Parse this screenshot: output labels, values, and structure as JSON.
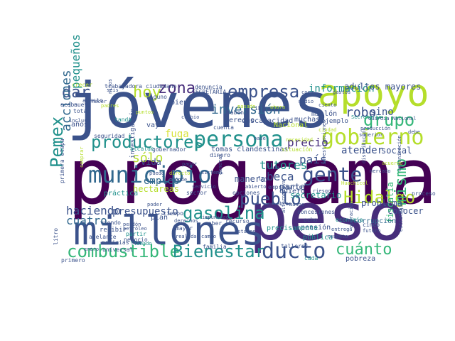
{
  "palette": {
    "dark_purple": "#440154",
    "indigo": "#3b528b",
    "teal": "#21918c",
    "green": "#5ec962",
    "lime": "#b5de2b",
    "purple": "#472d7b",
    "blue": "#31688e",
    "sea": "#35b779",
    "yellow": "#d9e33a"
  },
  "words": [
    {
      "text": "programa",
      "color": "#440154"
    },
    {
      "text": "jóvenes",
      "color": "#3b528b"
    },
    {
      "text": "peso",
      "color": "#472d7b"
    },
    {
      "text": "millones",
      "color": "#3b528b"
    },
    {
      "text": "apoyo",
      "color": "#b5de2b"
    },
    {
      "text": "municipio",
      "color": "#31688e"
    },
    {
      "text": "productores",
      "color": "#21918c"
    },
    {
      "text": "persona",
      "color": "#21918c"
    },
    {
      "text": "empresa",
      "color": "#3b528b"
    },
    {
      "text": "gobierno",
      "color": "#b5de2b"
    },
    {
      "text": "gente",
      "color": "#3b528b"
    },
    {
      "text": "combustible",
      "color": "#35b779"
    },
    {
      "text": "Bienestar",
      "color": "#21918c"
    },
    {
      "text": "ducto",
      "color": "#3b528b"
    },
    {
      "text": "gasolina",
      "color": "#21918c"
    },
    {
      "text": "pueblo",
      "color": "#3b528b"
    },
    {
      "text": "Hidalgo",
      "color": "#b5de2b"
    },
    {
      "text": "cuánto",
      "color": "#35b779"
    },
    {
      "text": "grupo",
      "color": "#35b779"
    },
    {
      "text": "zona",
      "color": "#472d7b"
    },
    {
      "text": "hoy",
      "color": "#b5de2b"
    },
    {
      "text": "dar",
      "color": "#3b528b"
    },
    {
      "text": "Pemex",
      "color": "#21918c"
    },
    {
      "text": "acciones",
      "color": "#31688e"
    },
    {
      "text": "inversión",
      "color": "#31688e"
    },
    {
      "text": "precio",
      "color": "#472d7b"
    },
    {
      "text": "país",
      "color": "#3b528b"
    },
    {
      "text": "robo",
      "color": "#3b528b"
    },
    {
      "text": "sino",
      "color": "#3b528b"
    },
    {
      "text": "mismo",
      "color": "#35b779"
    },
    {
      "text": "tutores",
      "color": "#21918c"
    },
    {
      "text": "beca",
      "color": "#3b528b"
    },
    {
      "text": "parte",
      "color": "#3b528b"
    },
    {
      "text": "secretario",
      "color": "#21918c"
    },
    {
      "text": "haciendo",
      "color": "#3b528b"
    },
    {
      "text": "presupuesto",
      "color": "#3b528b"
    },
    {
      "text": "cuatro",
      "color": "#31688e"
    },
    {
      "text": "sólo",
      "color": "#b5de2b"
    },
    {
      "text": "empleo",
      "color": "#31688e"
    },
    {
      "text": "pequeños",
      "color": "#21918c"
    },
    {
      "text": "información",
      "color": "#21918c"
    },
    {
      "text": "adultos mayores",
      "color": "#3b528b"
    },
    {
      "text": "atender",
      "color": "#3b528b"
    },
    {
      "text": "social",
      "color": "#3b528b"
    },
    {
      "text": "problema",
      "color": "#3b528b"
    },
    {
      "text": "conocer",
      "color": "#3b528b"
    },
    {
      "text": "fiscalía",
      "color": "#35b779"
    },
    {
      "text": "pensión",
      "color": "#3b528b"
    },
    {
      "text": "pública",
      "color": "#21918c"
    },
    {
      "text": "fuga",
      "color": "#d9e33a"
    },
    {
      "text": "vida",
      "color": "#3b528b"
    },
    {
      "text": "manera",
      "color": "#3b528b"
    },
    {
      "text": "tomas clandestinas",
      "color": "#3b528b"
    },
    {
      "text": "quiero",
      "color": "#3b528b"
    },
    {
      "text": "precisamente",
      "color": "#21918c"
    },
    {
      "text": "corrupción",
      "color": "#31688e"
    },
    {
      "text": "ciudadano",
      "color": "#3b528b"
    },
    {
      "text": "trabajadora",
      "color": "#3b528b"
    },
    {
      "text": "SECRETARIA",
      "color": "#3b528b"
    },
    {
      "text": "derecho",
      "color": "#3b528b"
    },
    {
      "text": "muchas",
      "color": "#3b528b"
    },
    {
      "text": "discapacidad",
      "color": "#3b528b"
    },
    {
      "text": "millón",
      "color": "#3b528b"
    },
    {
      "text": "Nacional",
      "color": "#b5de2b"
    },
    {
      "text": "años",
      "color": "#3b528b"
    },
    {
      "text": "total",
      "color": "#3b528b"
    },
    {
      "text": "incluso",
      "color": "#3b528b"
    },
    {
      "text": "seguridad",
      "color": "#3b528b"
    },
    {
      "text": "tanda",
      "color": "#21918c"
    },
    {
      "text": "vaya",
      "color": "#3b528b"
    },
    {
      "text": "cuenta",
      "color": "#3b528b"
    },
    {
      "text": "bien",
      "color": "#3b528b"
    },
    {
      "text": "alguno",
      "color": "#3b528b"
    },
    {
      "text": "Guardia Nacional",
      "color": "#3b528b"
    },
    {
      "text": "Secretaría",
      "color": "#21918c"
    },
    {
      "text": "producción",
      "color": "#3b528b"
    },
    {
      "text": "hectáreas",
      "color": "#b5de2b"
    },
    {
      "text": "investigación",
      "color": "#3b528b"
    },
    {
      "text": "práctica",
      "color": "#21918c"
    },
    {
      "text": "situación",
      "color": "#b5de2b"
    },
    {
      "text": "dinero",
      "color": "#3b528b"
    },
    {
      "text": "gobernador",
      "color": "#3b528b"
    },
    {
      "text": "plan",
      "color": "#3b528b"
    },
    {
      "text": "tiempo",
      "color": "#3b528b"
    },
    {
      "text": "recibir",
      "color": "#3b528b"
    },
    {
      "text": "viendo",
      "color": "#3b528b"
    },
    {
      "text": "partir",
      "color": "#21918c"
    },
    {
      "text": "negocio",
      "color": "#3b528b"
    },
    {
      "text": "familia",
      "color": "#3b528b"
    },
    {
      "text": "ocho",
      "color": "#3b528b"
    },
    {
      "text": "cinco",
      "color": "#3b528b"
    },
    {
      "text": "pobreza",
      "color": "#3b528b"
    },
    {
      "text": "cada",
      "color": "#21918c"
    },
    {
      "text": "primero",
      "color": "#3b528b"
    },
    {
      "text": "mayor",
      "color": "#3b528b"
    },
    {
      "text": "proceso",
      "color": "#3b528b"
    },
    {
      "text": "opciones",
      "color": "#3b528b"
    },
    {
      "text": "empresario",
      "color": "#3b528b"
    },
    {
      "text": "concesiones",
      "color": "#3b528b"
    },
    {
      "text": "economía",
      "color": "#21918c"
    },
    {
      "text": "primera etapa",
      "color": "#3b528b"
    },
    {
      "text": "universal",
      "color": "#3b528b"
    },
    {
      "text": "crecer",
      "color": "#b5de2b"
    },
    {
      "text": "abasto",
      "color": "#3b528b"
    },
    {
      "text": "nuevo",
      "color": "#3b528b"
    },
    {
      "text": "acaba",
      "color": "#3b528b"
    },
    {
      "text": "saben",
      "color": "#3b528b"
    },
    {
      "text": "iban",
      "color": "#3b528b"
    },
    {
      "text": "denuncia",
      "color": "#3b528b"
    },
    {
      "text": "ejemplo",
      "color": "#3b528b"
    },
    {
      "text": "respeto",
      "color": "#3b528b"
    },
    {
      "text": "entrega",
      "color": "#3b528b"
    },
    {
      "text": "operación",
      "color": "#3b528b"
    },
    {
      "text": "estrategia",
      "color": "#3b528b"
    },
    {
      "text": "comunicación",
      "color": "#3b528b"
    },
    {
      "text": "noticias",
      "color": "#3b528b"
    },
    {
      "text": "adelante",
      "color": "#3b528b"
    },
    {
      "text": "litro",
      "color": "#3b528b"
    },
    {
      "text": "enero",
      "color": "#3b528b"
    },
    {
      "text": "ley",
      "color": "#3b528b"
    },
    {
      "text": "sector",
      "color": "#3b528b"
    },
    {
      "text": "poder",
      "color": "#3b528b"
    },
    {
      "text": "impunidad",
      "color": "#3b528b"
    },
    {
      "text": "saber",
      "color": "#3b528b"
    },
    {
      "text": "recurso",
      "color": "#3b528b"
    },
    {
      "text": "talleres",
      "color": "#3b528b"
    },
    {
      "text": "alternativa",
      "color": "#3b528b"
    },
    {
      "text": "futuro",
      "color": "#3b528b"
    },
    {
      "text": "seis",
      "color": "#3b528b"
    },
    {
      "text": "niños",
      "color": "#3b528b"
    },
    {
      "text": "puntos",
      "color": "#b5de2b"
    },
    {
      "text": "pagar",
      "color": "#3b528b"
    },
    {
      "text": "alcalde",
      "color": "#21918c"
    },
    {
      "text": "puedo",
      "color": "#3b528b"
    },
    {
      "text": "directo",
      "color": "#b5de2b"
    },
    {
      "text": "general",
      "color": "#3b528b"
    },
    {
      "text": "dónde",
      "color": "#3b528b"
    },
    {
      "text": "perdón",
      "color": "#3b528b"
    },
    {
      "text": "petróleo",
      "color": "#3b528b"
    },
    {
      "text": "llamado",
      "color": "#21918c"
    },
    {
      "text": "cosa",
      "color": "#3b528b"
    },
    {
      "text": "toda",
      "color": "#3b528b"
    },
    {
      "text": "comprar",
      "color": "#b5de2b"
    },
    {
      "text": "hacer",
      "color": "#3b528b"
    },
    {
      "text": "superior",
      "color": "#3b528b"
    },
    {
      "text": "ahora",
      "color": "#b5de2b"
    },
    {
      "text": "manos",
      "color": "#3b528b"
    },
    {
      "text": "gastos",
      "color": "#3b528b"
    },
    {
      "text": "medio",
      "color": "#3b528b"
    },
    {
      "text": "pasado",
      "color": "#b5de2b"
    },
    {
      "text": "cambio",
      "color": "#3b528b"
    },
    {
      "text": "realidad",
      "color": "#3b528b"
    },
    {
      "text": "estamos",
      "color": "#3b528b"
    },
    {
      "text": "investigaciones",
      "color": "#3b528b"
    },
    {
      "text": "distribución",
      "color": "#3b528b"
    },
    {
      "text": "obras",
      "color": "#3b528b"
    },
    {
      "text": "necesidad",
      "color": "#b5de2b"
    },
    {
      "text": "servicio",
      "color": "#3b528b"
    },
    {
      "text": "mercado",
      "color": "#3b528b"
    },
    {
      "text": "padres",
      "color": "#b5de2b"
    },
    {
      "text": "derechos",
      "color": "#3b528b"
    },
    {
      "text": "campo",
      "color": "#3b528b"
    },
    {
      "text": "abierto",
      "color": "#3b528b"
    },
    {
      "text": "riesgo",
      "color": "#3b528b"
    },
    {
      "text": "base",
      "color": "#3b528b"
    },
    {
      "text": "ciudad",
      "color": "#b5de2b"
    },
    {
      "text": "sistema",
      "color": "#3b528b"
    },
    {
      "text": "debe",
      "color": "#3b528b"
    },
    {
      "text": "ciento",
      "color": "#3b528b"
    },
    {
      "text": "Huachicol",
      "color": "#b5de2b"
    },
    {
      "text": "acuerdo",
      "color": "#b5de2b"
    }
  ]
}
